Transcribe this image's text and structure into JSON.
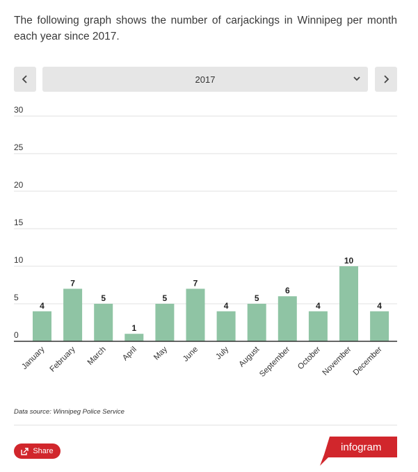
{
  "intro_text": "The following graph shows the number of carjackings in Winnipeg per month each year since 2017.",
  "selector": {
    "selected_year": "2017",
    "prev_icon": "chevron-left-icon",
    "next_icon": "chevron-right-icon",
    "dropdown_icon": "chevron-down-icon"
  },
  "chart_data": {
    "type": "bar",
    "categories": [
      "January",
      "February",
      "March",
      "April",
      "May",
      "June",
      "July",
      "August",
      "September",
      "October",
      "November",
      "December"
    ],
    "values": [
      4,
      7,
      5,
      1,
      5,
      7,
      4,
      5,
      6,
      4,
      10,
      4
    ],
    "y_ticks": [
      0,
      5,
      10,
      15,
      20,
      25,
      30
    ],
    "ylim": [
      0,
      30
    ],
    "grid": true,
    "bar_color": "#8fc4a4"
  },
  "source_text": "Data source: Winnipeg Police Service",
  "share_label": "Share",
  "logo_text": "infogram",
  "colors": {
    "accent": "#d1262c",
    "bar": "#8fc4a4"
  }
}
